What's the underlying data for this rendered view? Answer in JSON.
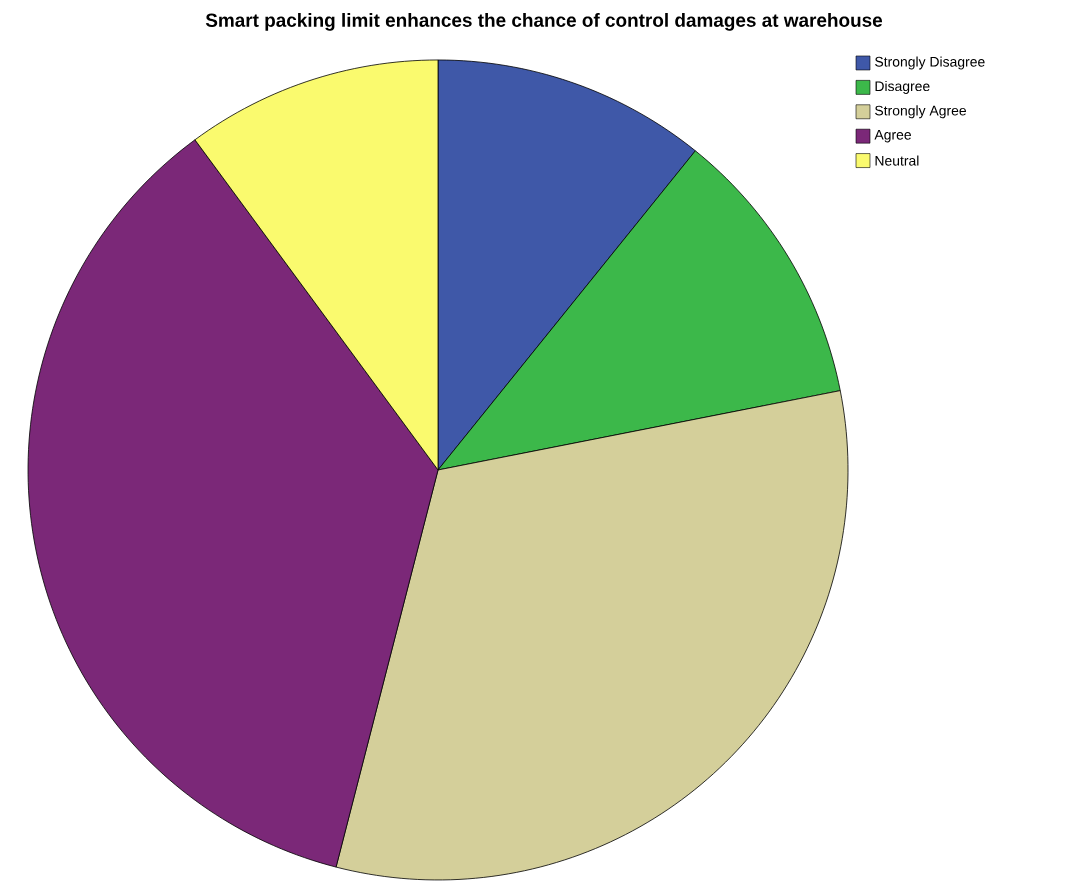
{
  "chart_data": {
    "type": "pie",
    "title": "Smart packing limit enhances the chance of control damages at warehouse",
    "categories": [
      "Strongly Disagree",
      "Disagree",
      "Strongly Agree",
      "Agree",
      "Neutral"
    ],
    "values": [
      10.8,
      11.1,
      32.1,
      35.9,
      10.1
    ],
    "colors": [
      "#3f58a8",
      "#3cb84a",
      "#d4cf9a",
      "#7b2878",
      "#fafa6e"
    ],
    "legend": "top right"
  }
}
